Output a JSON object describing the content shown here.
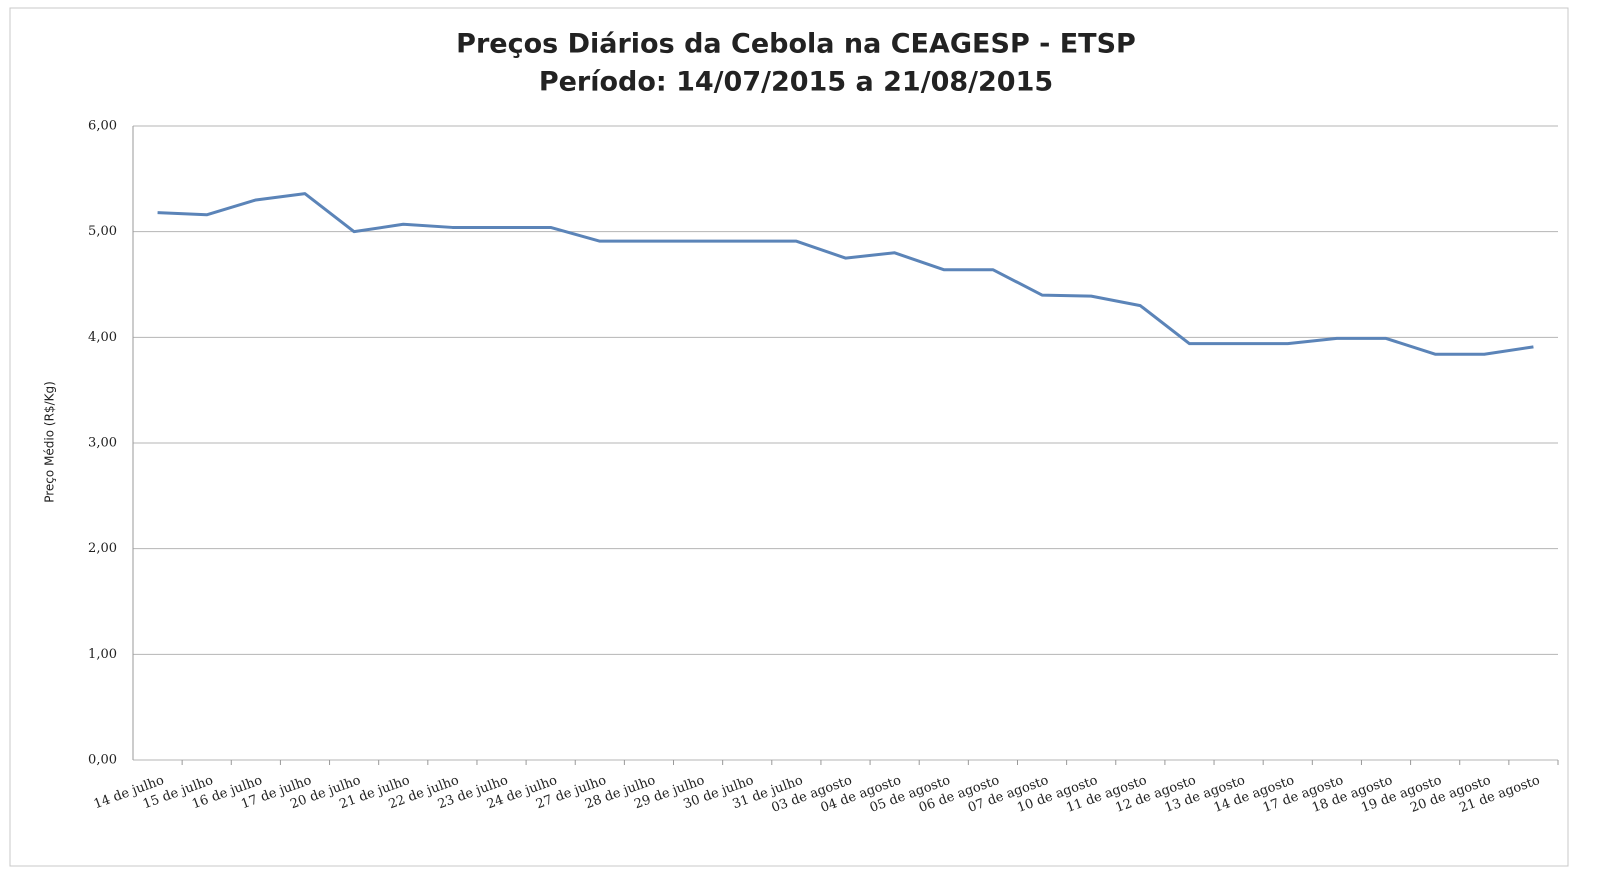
{
  "chart_data": {
    "type": "line",
    "title": "Preços Diários da Cebola na CEAGESP - ETSP",
    "subtitle": "Período: 14/07/2015 a 21/08/2015",
    "y_label": "Preço Médio (R$/Kg)",
    "categories": [
      "14 de julho",
      "15 de julho",
      "16 de julho",
      "17 de julho",
      "20 de julho",
      "21 de julho",
      "22 de julho",
      "23 de julho",
      "24 de julho",
      "27 de julho",
      "28 de julho",
      "29 de julho",
      "30 de julho",
      "31 de julho",
      "03 de agosto",
      "04 de agosto",
      "05 de agosto",
      "06 de agosto",
      "07 de agosto",
      "10 de agosto",
      "11 de agosto",
      "12 de agosto",
      "13 de agosto",
      "14 de agosto",
      "17 de agosto",
      "18 de agosto",
      "19 de agosto",
      "20 de agosto",
      "21 de agosto"
    ],
    "values": [
      5.18,
      5.16,
      5.3,
      5.36,
      5.0,
      5.07,
      5.04,
      5.04,
      5.04,
      4.91,
      4.91,
      4.91,
      4.91,
      4.91,
      4.75,
      4.8,
      4.64,
      4.64,
      4.4,
      4.39,
      4.3,
      3.94,
      3.94,
      3.94,
      3.99,
      3.99,
      3.84,
      3.84,
      3.91
    ],
    "color": "#5b84b8",
    "ylim": [
      0,
      6
    ],
    "yticks": [
      {
        "value": 0,
        "label": "0,00"
      },
      {
        "value": 1,
        "label": "1,00"
      },
      {
        "value": 2,
        "label": "2,00"
      },
      {
        "value": 3,
        "label": "3,00"
      },
      {
        "value": 4,
        "label": "4,00"
      },
      {
        "value": 5,
        "label": "5,00"
      },
      {
        "value": 6,
        "label": "6,00"
      }
    ],
    "grid": true
  }
}
